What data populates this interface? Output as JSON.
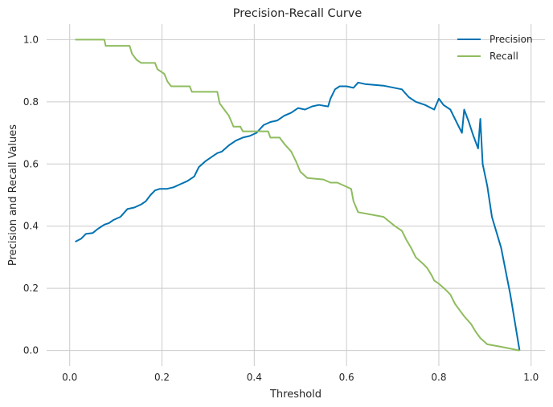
{
  "chart_data": {
    "type": "line",
    "title": "Precision-Recall Curve",
    "xlabel": "Threshold",
    "ylabel": "Precision and Recall Values",
    "xlim": [
      -0.05,
      1.03
    ],
    "ylim": [
      -0.05,
      1.05
    ],
    "xticks": [
      0.0,
      0.2,
      0.4,
      0.6,
      0.8,
      1.0
    ],
    "yticks": [
      0.0,
      0.2,
      0.4,
      0.6,
      0.8,
      1.0
    ],
    "grid": true,
    "legend_position": "top-right",
    "series": [
      {
        "name": "Precision",
        "color": "#0072b2",
        "points": [
          [
            0.012,
            0.35
          ],
          [
            0.025,
            0.36
          ],
          [
            0.035,
            0.375
          ],
          [
            0.05,
            0.378
          ],
          [
            0.06,
            0.39
          ],
          [
            0.075,
            0.405
          ],
          [
            0.085,
            0.41
          ],
          [
            0.095,
            0.42
          ],
          [
            0.11,
            0.43
          ],
          [
            0.125,
            0.455
          ],
          [
            0.14,
            0.46
          ],
          [
            0.155,
            0.47
          ],
          [
            0.165,
            0.48
          ],
          [
            0.175,
            0.5
          ],
          [
            0.185,
            0.515
          ],
          [
            0.195,
            0.52
          ],
          [
            0.21,
            0.52
          ],
          [
            0.225,
            0.525
          ],
          [
            0.24,
            0.535
          ],
          [
            0.255,
            0.545
          ],
          [
            0.27,
            0.56
          ],
          [
            0.28,
            0.59
          ],
          [
            0.295,
            0.61
          ],
          [
            0.31,
            0.625
          ],
          [
            0.32,
            0.635
          ],
          [
            0.33,
            0.64
          ],
          [
            0.345,
            0.66
          ],
          [
            0.36,
            0.675
          ],
          [
            0.375,
            0.685
          ],
          [
            0.39,
            0.69
          ],
          [
            0.405,
            0.7
          ],
          [
            0.42,
            0.725
          ],
          [
            0.435,
            0.735
          ],
          [
            0.45,
            0.74
          ],
          [
            0.465,
            0.755
          ],
          [
            0.48,
            0.765
          ],
          [
            0.495,
            0.78
          ],
          [
            0.51,
            0.775
          ],
          [
            0.525,
            0.785
          ],
          [
            0.54,
            0.79
          ],
          [
            0.56,
            0.785
          ],
          [
            0.565,
            0.81
          ],
          [
            0.575,
            0.84
          ],
          [
            0.585,
            0.85
          ],
          [
            0.6,
            0.85
          ],
          [
            0.615,
            0.845
          ],
          [
            0.625,
            0.862
          ],
          [
            0.64,
            0.857
          ],
          [
            0.68,
            0.852
          ],
          [
            0.72,
            0.84
          ],
          [
            0.735,
            0.815
          ],
          [
            0.75,
            0.8
          ],
          [
            0.77,
            0.79
          ],
          [
            0.79,
            0.775
          ],
          [
            0.8,
            0.81
          ],
          [
            0.81,
            0.79
          ],
          [
            0.825,
            0.775
          ],
          [
            0.84,
            0.73
          ],
          [
            0.85,
            0.7
          ],
          [
            0.855,
            0.775
          ],
          [
            0.865,
            0.735
          ],
          [
            0.875,
            0.69
          ],
          [
            0.885,
            0.65
          ],
          [
            0.89,
            0.745
          ],
          [
            0.895,
            0.6
          ],
          [
            0.905,
            0.53
          ],
          [
            0.915,
            0.43
          ],
          [
            0.935,
            0.33
          ],
          [
            0.955,
            0.18
          ],
          [
            0.975,
            0.0
          ]
        ]
      },
      {
        "name": "Recall",
        "color": "#8fbc5f",
        "points": [
          [
            0.012,
            1.0
          ],
          [
            0.075,
            1.0
          ],
          [
            0.078,
            0.98
          ],
          [
            0.13,
            0.98
          ],
          [
            0.135,
            0.955
          ],
          [
            0.145,
            0.935
          ],
          [
            0.155,
            0.925
          ],
          [
            0.185,
            0.925
          ],
          [
            0.19,
            0.905
          ],
          [
            0.205,
            0.89
          ],
          [
            0.212,
            0.865
          ],
          [
            0.22,
            0.85
          ],
          [
            0.26,
            0.85
          ],
          [
            0.265,
            0.832
          ],
          [
            0.32,
            0.832
          ],
          [
            0.325,
            0.795
          ],
          [
            0.335,
            0.775
          ],
          [
            0.345,
            0.755
          ],
          [
            0.355,
            0.72
          ],
          [
            0.37,
            0.72
          ],
          [
            0.375,
            0.705
          ],
          [
            0.43,
            0.705
          ],
          [
            0.435,
            0.685
          ],
          [
            0.455,
            0.685
          ],
          [
            0.465,
            0.665
          ],
          [
            0.48,
            0.64
          ],
          [
            0.49,
            0.61
          ],
          [
            0.5,
            0.575
          ],
          [
            0.515,
            0.555
          ],
          [
            0.55,
            0.55
          ],
          [
            0.565,
            0.54
          ],
          [
            0.58,
            0.54
          ],
          [
            0.595,
            0.53
          ],
          [
            0.61,
            0.52
          ],
          [
            0.615,
            0.48
          ],
          [
            0.625,
            0.445
          ],
          [
            0.68,
            0.43
          ],
          [
            0.705,
            0.4
          ],
          [
            0.72,
            0.385
          ],
          [
            0.73,
            0.355
          ],
          [
            0.74,
            0.33
          ],
          [
            0.75,
            0.3
          ],
          [
            0.765,
            0.28
          ],
          [
            0.775,
            0.265
          ],
          [
            0.785,
            0.24
          ],
          [
            0.79,
            0.225
          ],
          [
            0.8,
            0.215
          ],
          [
            0.815,
            0.195
          ],
          [
            0.825,
            0.18
          ],
          [
            0.835,
            0.15
          ],
          [
            0.845,
            0.13
          ],
          [
            0.855,
            0.11
          ],
          [
            0.87,
            0.085
          ],
          [
            0.88,
            0.06
          ],
          [
            0.89,
            0.04
          ],
          [
            0.905,
            0.02
          ],
          [
            0.935,
            0.012
          ],
          [
            0.975,
            0.0
          ]
        ]
      }
    ]
  }
}
